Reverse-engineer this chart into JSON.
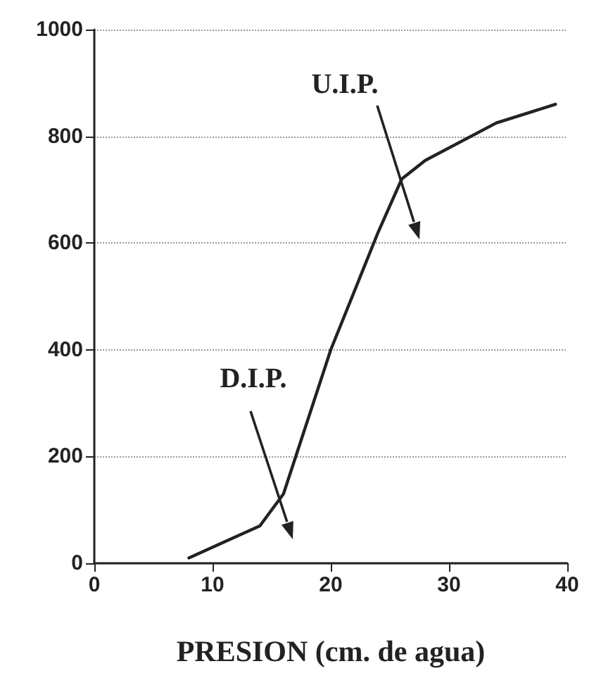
{
  "chart_data": {
    "type": "line",
    "xlabel": "PRESION (cm. de agua)",
    "x": [
      8,
      14,
      16,
      20,
      24,
      26,
      28,
      34,
      39
    ],
    "values": [
      10,
      70,
      130,
      400,
      620,
      720,
      755,
      825,
      860
    ],
    "color": "#222222",
    "xlim": [
      0,
      40
    ],
    "xticks": [
      0,
      10,
      20,
      30,
      40
    ],
    "ylim": [
      0,
      1000
    ],
    "yticks": [
      0,
      200,
      400,
      600,
      800,
      1000
    ],
    "grid": "y",
    "marker": "none",
    "line_style": "solid",
    "annotations": [
      "U.I.P.",
      "D.I.P."
    ]
  }
}
